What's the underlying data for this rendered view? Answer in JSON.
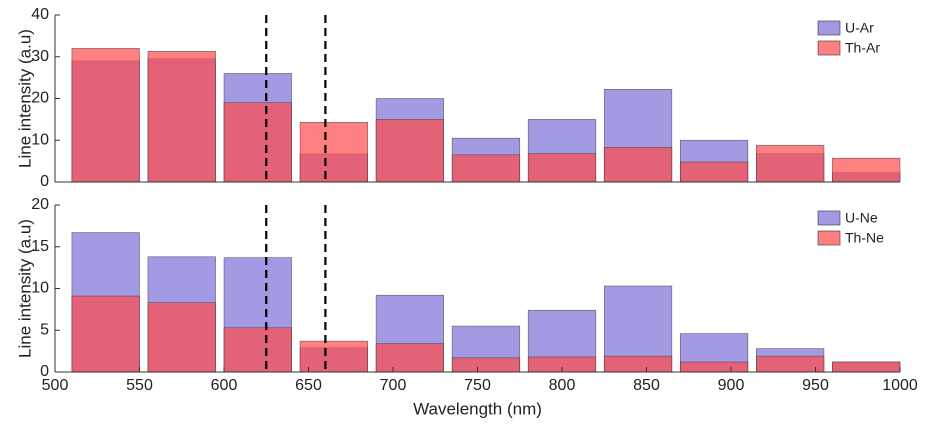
{
  "chart_data": [
    {
      "type": "bar",
      "ylabel": "Line intensity (a.u)",
      "x": [
        530,
        575,
        620,
        665,
        710,
        755,
        800,
        845,
        890,
        935,
        980
      ],
      "series": [
        {
          "name": "U-Ar",
          "color": "#7b6fd6",
          "values": [
            29,
            29.5,
            26,
            6.7,
            20,
            10.5,
            15,
            22.2,
            10,
            6.8,
            2.2
          ]
        },
        {
          "name": "Th-Ar",
          "color": "#ff4a4a",
          "values": [
            32,
            31.3,
            19,
            14.3,
            15,
            6.5,
            6.8,
            8.3,
            4.8,
            8.8,
            5.7
          ]
        }
      ],
      "xlim": [
        500,
        1000
      ],
      "ylim": [
        0,
        40
      ],
      "yticks": [
        0,
        10,
        20,
        30,
        40
      ],
      "vlines": [
        625,
        660
      ],
      "legend": "upper right"
    },
    {
      "type": "bar",
      "ylabel": "Line intensity (a.u)",
      "xlabel": "Wavelength (nm)",
      "x": [
        530,
        575,
        620,
        665,
        710,
        755,
        800,
        845,
        890,
        935,
        980
      ],
      "series": [
        {
          "name": "U-Ne",
          "color": "#7b6fd6",
          "values": [
            16.7,
            13.8,
            13.7,
            2.9,
            9.2,
            5.5,
            7.4,
            10.3,
            4.6,
            2.8,
            1.2
          ]
        },
        {
          "name": "Th-Ne",
          "color": "#ff4a4a",
          "values": [
            9.1,
            8.3,
            5.3,
            3.7,
            3.4,
            1.7,
            1.8,
            1.9,
            1.2,
            1.9,
            1.2
          ]
        }
      ],
      "xlim": [
        500,
        1000
      ],
      "xticks": [
        500,
        550,
        600,
        650,
        700,
        750,
        800,
        850,
        900,
        950,
        1000
      ],
      "ylim": [
        0,
        20
      ],
      "yticks": [
        0,
        5,
        10,
        15,
        20
      ],
      "vlines": [
        625,
        660
      ],
      "legend": "upper right"
    }
  ]
}
